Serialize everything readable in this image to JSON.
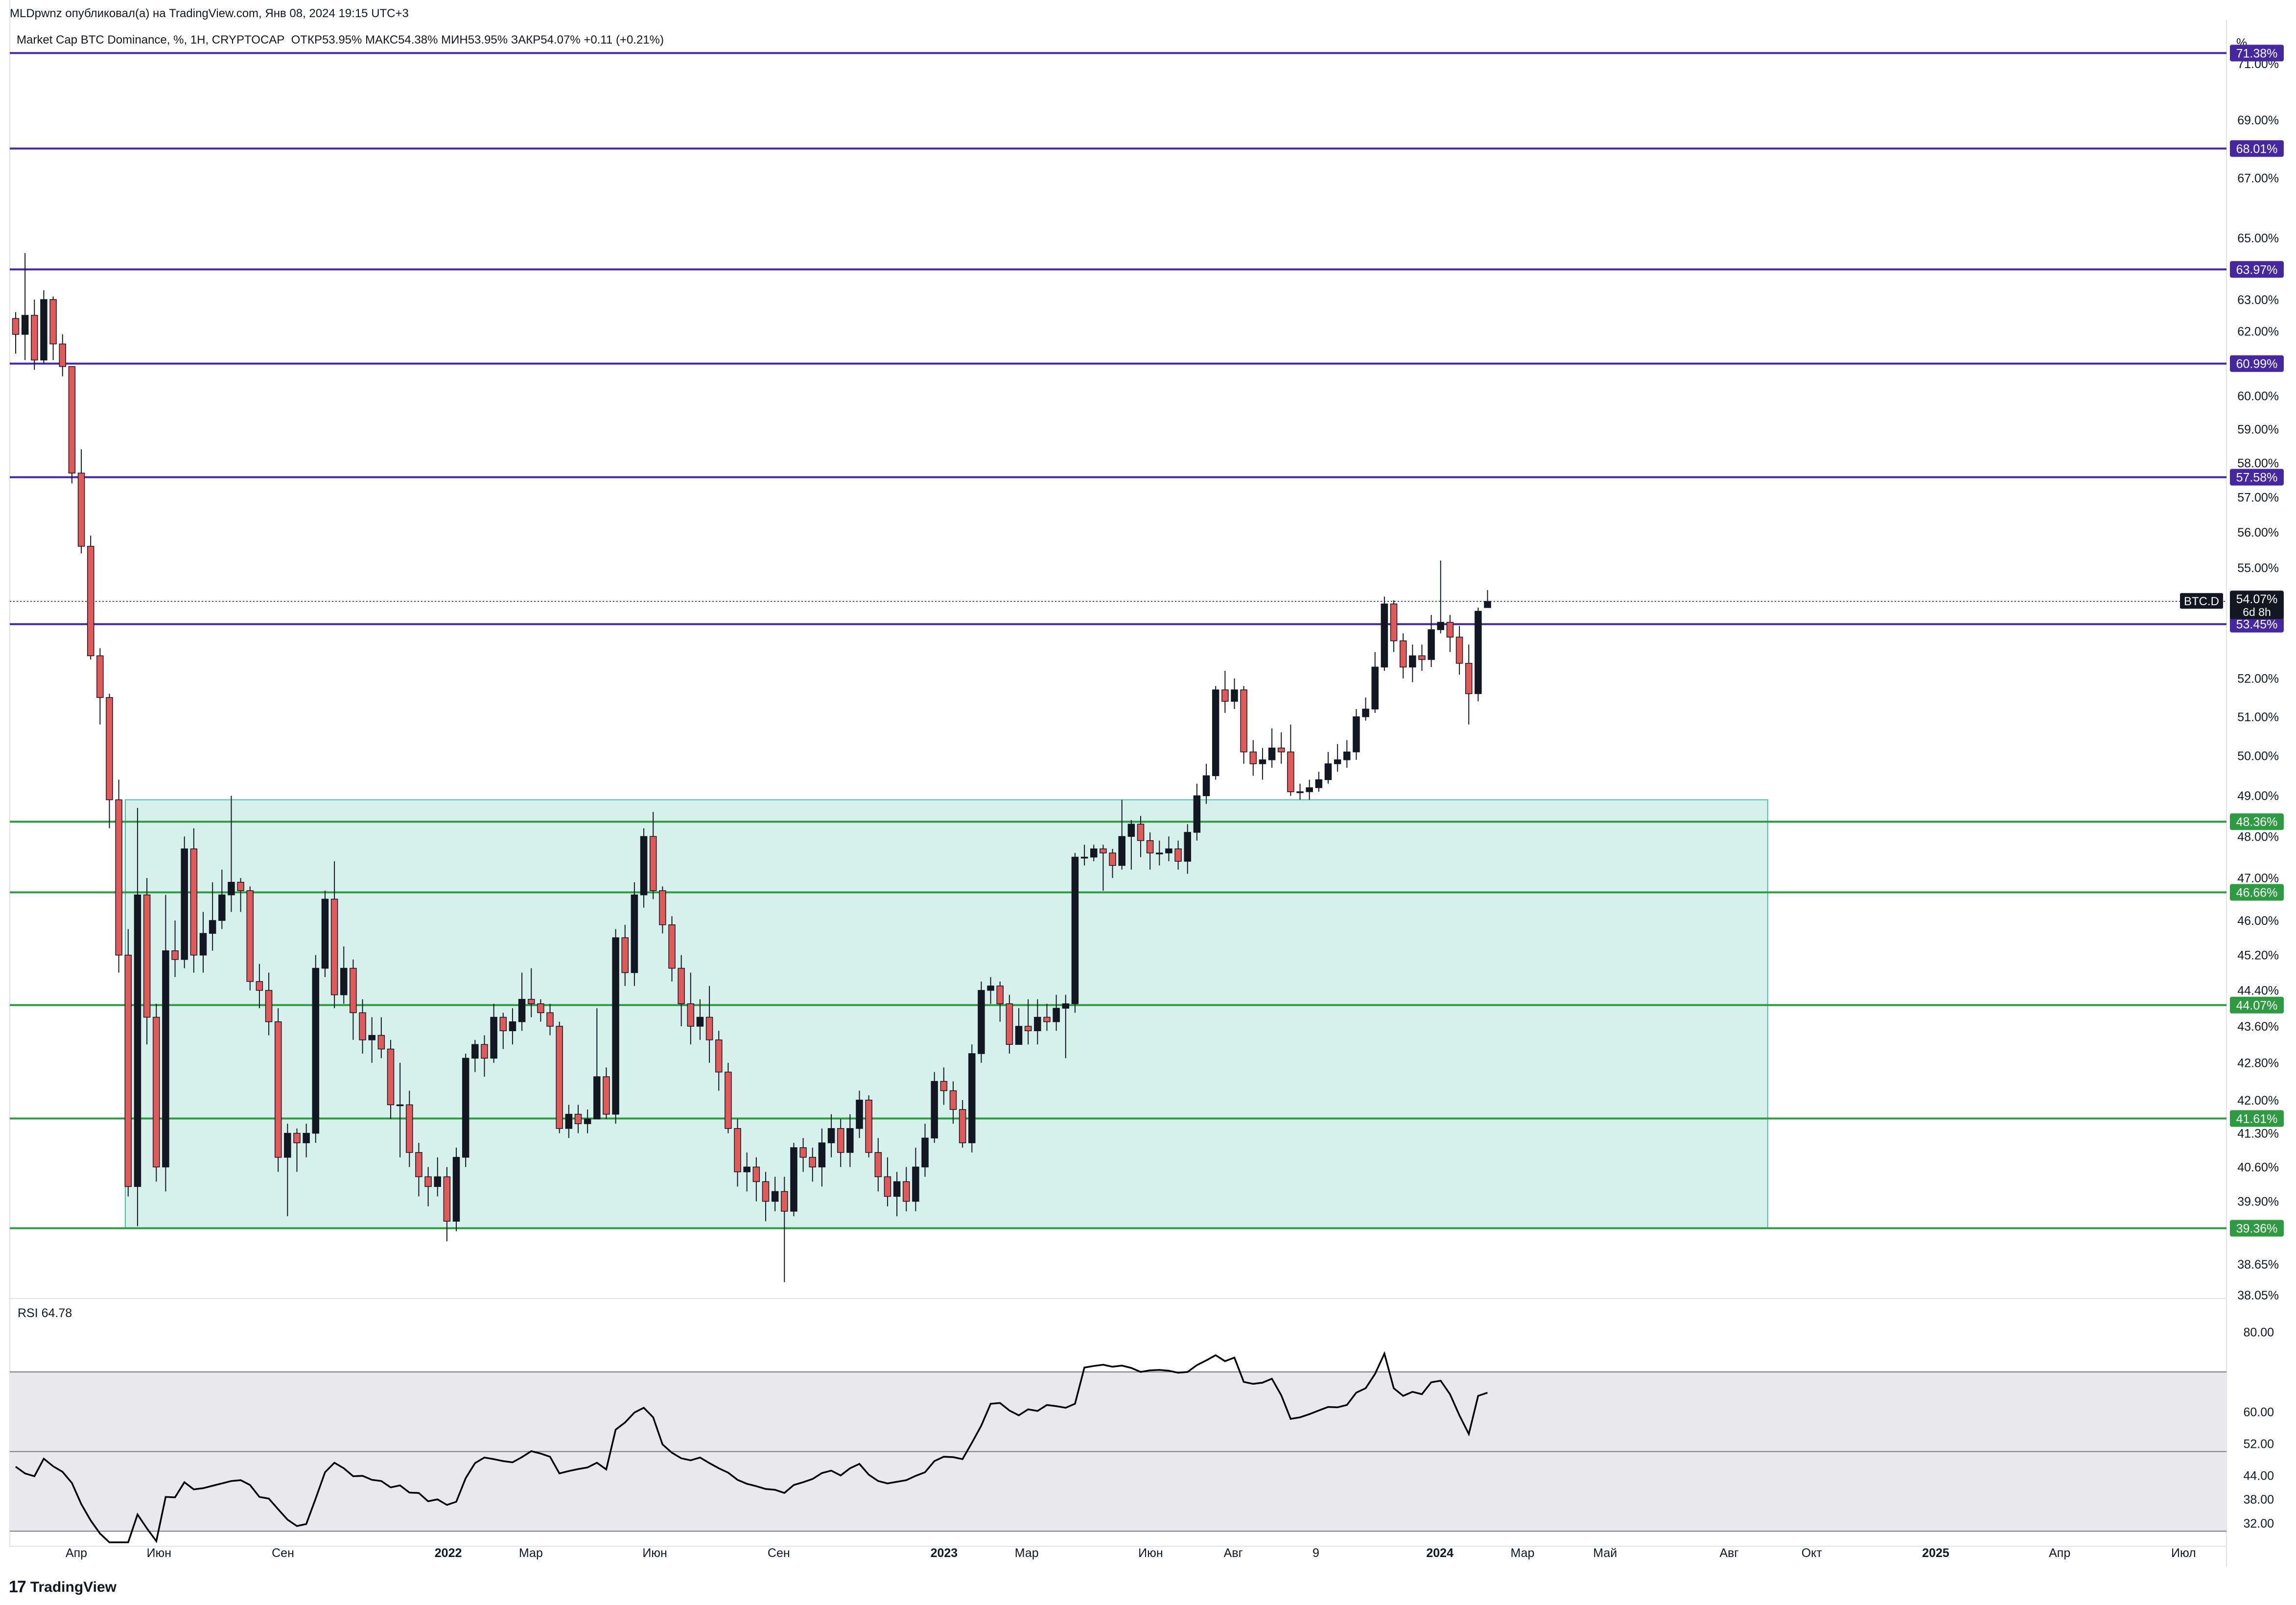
{
  "header": {
    "publisher": "MLDpwnz опубликовал(а) на TradingView.com, Янв 08, 2024 19:15 UTC+3",
    "instrument": "Market Cap BTC Dominance, %, 1H, CRYPTOCAP",
    "ohlc": "ОТКР53.95%  МАКС54.38%  МИН53.95%  ЗАКР54.07%  +0.11 (+0.21%)",
    "unit_label": "%"
  },
  "branding": {
    "logo": "TradingView",
    "logo_mark": "17"
  },
  "colors": {
    "up": "#131722",
    "down": "#e05a5a",
    "resistance": "#4527a0",
    "support": "#2e9a42",
    "range_fill": "#d6f1ec",
    "range_border": "#4bbfa6",
    "rsi_band": "#e9e9ec"
  },
  "chart_data": [
    {
      "type": "candlestick",
      "symbol": "BTC.D",
      "last_price": "54.07%",
      "countdown": "6d 8h",
      "y_scale": "log",
      "ylim": [
        38.05,
        72.6
      ],
      "y_ticks": [
        71.0,
        69.0,
        67.0,
        65.0,
        63.0,
        62.0,
        60.0,
        59.0,
        58.0,
        57.0,
        56.0,
        55.0,
        52.0,
        51.0,
        50.0,
        49.0,
        48.0,
        47.0,
        46.0,
        45.2,
        44.4,
        43.6,
        42.8,
        42.0,
        41.3,
        40.6,
        39.9,
        38.65,
        38.05
      ],
      "x_labels": [
        "Апр",
        "Июн",
        "Сен",
        "2022",
        "Мар",
        "Июн",
        "Сен",
        "2023",
        "Мар",
        "Июн",
        "Авг",
        "9",
        "2024",
        "Мар",
        "Май",
        "Авг",
        "Окт",
        "2025",
        "Апр",
        "Июл"
      ],
      "resistance_levels": [
        71.38,
        68.01,
        63.97,
        60.99,
        57.58,
        53.45
      ],
      "support_levels": [
        48.36,
        46.66,
        44.07,
        41.61,
        39.36
      ],
      "range_box": {
        "top": 48.9,
        "bottom": 39.36,
        "x_from": "2021-04-01",
        "x_to": "2024-10-01"
      },
      "candles": [
        [
          62.4,
          61.9,
          62.6,
          61.3
        ],
        [
          61.9,
          62.5,
          64.5,
          61.1
        ],
        [
          62.5,
          61.1,
          63.0,
          60.8
        ],
        [
          61.1,
          63.0,
          63.3,
          61.0
        ],
        [
          63.0,
          61.6,
          63.1,
          61.1
        ],
        [
          61.6,
          60.9,
          61.9,
          60.6
        ],
        [
          60.9,
          57.7,
          60.9,
          57.4
        ],
        [
          57.7,
          55.6,
          58.4,
          55.4
        ],
        [
          55.6,
          52.6,
          55.9,
          52.5
        ],
        [
          52.6,
          51.5,
          52.8,
          50.8
        ],
        [
          51.5,
          48.9,
          51.6,
          48.2
        ],
        [
          48.9,
          45.2,
          49.4,
          44.8
        ],
        [
          45.2,
          40.2,
          45.8,
          40.0
        ],
        [
          40.2,
          46.6,
          48.7,
          39.4
        ],
        [
          46.6,
          43.8,
          47.0,
          43.2
        ],
        [
          43.8,
          40.6,
          44.1,
          40.3
        ],
        [
          40.6,
          45.3,
          46.6,
          40.1
        ],
        [
          45.3,
          45.1,
          46.0,
          44.7
        ],
        [
          45.1,
          47.7,
          48.0,
          44.9
        ],
        [
          47.7,
          45.2,
          48.2,
          44.8
        ],
        [
          45.2,
          45.7,
          46.2,
          44.8
        ],
        [
          45.7,
          46.0,
          46.9,
          45.3
        ],
        [
          46.0,
          46.6,
          47.2,
          45.8
        ],
        [
          46.6,
          46.9,
          49.0,
          46.2
        ],
        [
          46.9,
          46.7,
          47.0,
          46.2
        ],
        [
          46.7,
          44.6,
          46.8,
          44.4
        ],
        [
          44.6,
          44.4,
          45.0,
          44.0
        ],
        [
          44.4,
          43.7,
          44.8,
          43.4
        ],
        [
          43.7,
          40.8,
          44.0,
          40.5
        ],
        [
          40.8,
          41.3,
          41.5,
          39.6
        ],
        [
          41.3,
          41.1,
          41.4,
          40.5
        ],
        [
          41.1,
          41.3,
          41.5,
          40.8
        ],
        [
          41.3,
          44.9,
          45.2,
          41.1
        ],
        [
          44.9,
          46.5,
          46.7,
          44.7
        ],
        [
          46.5,
          44.3,
          47.4,
          44.0
        ],
        [
          44.3,
          44.9,
          45.4,
          44.1
        ],
        [
          44.9,
          43.9,
          45.1,
          43.3
        ],
        [
          43.9,
          43.3,
          44.2,
          43.0
        ],
        [
          43.3,
          43.4,
          43.8,
          42.8
        ],
        [
          43.4,
          43.1,
          43.8,
          42.9
        ],
        [
          43.1,
          41.9,
          43.3,
          41.6
        ],
        [
          41.9,
          41.9,
          42.8,
          40.8
        ],
        [
          41.9,
          40.9,
          42.2,
          40.6
        ],
        [
          40.9,
          40.4,
          41.1,
          40.0
        ],
        [
          40.4,
          40.2,
          40.6,
          39.8
        ],
        [
          40.2,
          40.4,
          40.8,
          40.0
        ],
        [
          40.4,
          39.5,
          40.6,
          39.1
        ],
        [
          39.5,
          40.8,
          41.0,
          39.3
        ],
        [
          40.8,
          42.9,
          43.0,
          40.6
        ],
        [
          42.9,
          43.2,
          43.3,
          42.6
        ],
        [
          43.2,
          42.9,
          43.4,
          42.5
        ],
        [
          42.9,
          43.8,
          44.1,
          42.8
        ],
        [
          43.8,
          43.5,
          43.9,
          43.1
        ],
        [
          43.5,
          43.7,
          44.0,
          43.2
        ],
        [
          43.7,
          44.2,
          44.8,
          43.5
        ],
        [
          44.2,
          44.1,
          44.9,
          43.8
        ],
        [
          44.1,
          43.9,
          44.2,
          43.7
        ],
        [
          43.9,
          43.6,
          44.1,
          43.4
        ],
        [
          43.6,
          41.4,
          43.7,
          41.3
        ],
        [
          41.4,
          41.7,
          41.9,
          41.2
        ],
        [
          41.7,
          41.5,
          41.9,
          41.3
        ],
        [
          41.5,
          41.6,
          41.8,
          41.3
        ],
        [
          41.6,
          42.5,
          44.0,
          41.6
        ],
        [
          42.5,
          41.7,
          42.7,
          41.6
        ],
        [
          41.7,
          45.6,
          45.8,
          41.5
        ],
        [
          45.6,
          44.8,
          45.9,
          44.5
        ],
        [
          44.8,
          46.6,
          46.9,
          44.5
        ],
        [
          46.6,
          48.0,
          48.2,
          46.3
        ],
        [
          48.0,
          46.7,
          48.6,
          46.5
        ],
        [
          46.7,
          45.9,
          46.8,
          45.7
        ],
        [
          45.9,
          44.9,
          46.1,
          44.6
        ],
        [
          44.9,
          44.1,
          45.2,
          43.6
        ],
        [
          44.1,
          43.6,
          44.8,
          43.2
        ],
        [
          43.6,
          43.8,
          44.2,
          43.3
        ],
        [
          43.8,
          43.3,
          44.5,
          42.8
        ],
        [
          43.3,
          42.6,
          43.5,
          42.2
        ],
        [
          42.6,
          41.4,
          42.8,
          41.3
        ],
        [
          41.4,
          40.5,
          41.6,
          40.2
        ],
        [
          40.5,
          40.6,
          40.9,
          40.1
        ],
        [
          40.6,
          40.3,
          40.8,
          39.9
        ],
        [
          40.3,
          39.9,
          40.5,
          39.5
        ],
        [
          39.9,
          40.1,
          40.4,
          39.7
        ],
        [
          40.1,
          39.7,
          40.4,
          38.3
        ],
        [
          39.7,
          41.0,
          41.1,
          39.6
        ],
        [
          41.0,
          40.8,
          41.2,
          40.5
        ],
        [
          40.8,
          40.6,
          41.0,
          40.3
        ],
        [
          40.6,
          41.1,
          41.4,
          40.2
        ],
        [
          41.1,
          41.4,
          41.7,
          40.8
        ],
        [
          41.4,
          40.9,
          41.6,
          40.6
        ],
        [
          40.9,
          41.4,
          41.7,
          40.6
        ],
        [
          41.4,
          42.0,
          42.2,
          41.2
        ],
        [
          42.0,
          40.9,
          42.1,
          40.8
        ],
        [
          40.9,
          40.4,
          41.2,
          40.1
        ],
        [
          40.4,
          40.0,
          40.8,
          39.8
        ],
        [
          40.0,
          40.3,
          40.5,
          39.6
        ],
        [
          40.3,
          39.9,
          40.6,
          39.7
        ],
        [
          39.9,
          40.6,
          41.0,
          39.7
        ],
        [
          40.6,
          41.2,
          41.5,
          40.4
        ],
        [
          41.2,
          42.4,
          42.6,
          41.1
        ],
        [
          42.4,
          42.2,
          42.7,
          41.9
        ],
        [
          42.2,
          41.8,
          42.4,
          41.5
        ],
        [
          41.8,
          41.1,
          42.0,
          41.0
        ],
        [
          41.1,
          43.0,
          43.2,
          40.9
        ],
        [
          43.0,
          44.4,
          44.6,
          42.8
        ],
        [
          44.4,
          44.5,
          44.7,
          44.1
        ],
        [
          44.5,
          44.1,
          44.6,
          43.7
        ],
        [
          44.1,
          43.2,
          44.3,
          43.0
        ],
        [
          43.2,
          43.6,
          44.0,
          43.3
        ],
        [
          43.6,
          43.5,
          44.2,
          43.2
        ],
        [
          43.5,
          43.8,
          44.2,
          43.2
        ],
        [
          43.8,
          43.7,
          44.1,
          43.5
        ],
        [
          43.7,
          44.0,
          44.3,
          43.5
        ],
        [
          44.0,
          44.1,
          44.3,
          42.9
        ],
        [
          44.1,
          47.5,
          47.6,
          43.9
        ],
        [
          47.5,
          47.5,
          47.8,
          47.3
        ],
        [
          47.5,
          47.7,
          47.8,
          47.4
        ],
        [
          47.7,
          47.6,
          47.8,
          46.7
        ],
        [
          47.6,
          47.3,
          47.7,
          47.0
        ],
        [
          47.3,
          48.0,
          48.9,
          47.2
        ],
        [
          48.0,
          48.3,
          48.4,
          47.2
        ],
        [
          48.3,
          47.9,
          48.5,
          47.5
        ],
        [
          47.9,
          47.6,
          48.1,
          47.2
        ],
        [
          47.6,
          47.6,
          47.9,
          47.3
        ],
        [
          47.6,
          47.7,
          48.0,
          47.4
        ],
        [
          47.7,
          47.4,
          47.9,
          47.2
        ],
        [
          47.4,
          48.1,
          48.3,
          47.1
        ],
        [
          48.1,
          49.0,
          49.3,
          47.9
        ],
        [
          49.0,
          49.5,
          49.8,
          48.8
        ],
        [
          49.5,
          51.7,
          51.8,
          49.4
        ],
        [
          51.7,
          51.4,
          52.2,
          51.1
        ],
        [
          51.4,
          51.7,
          52.0,
          51.2
        ],
        [
          51.7,
          50.1,
          51.8,
          49.8
        ],
        [
          50.1,
          49.8,
          50.4,
          49.5
        ],
        [
          49.8,
          49.9,
          50.2,
          49.4
        ],
        [
          49.9,
          50.2,
          50.7,
          49.7
        ],
        [
          50.2,
          50.1,
          50.6,
          49.8
        ],
        [
          50.1,
          49.1,
          50.8,
          49.0
        ],
        [
          49.1,
          49.1,
          49.3,
          48.9
        ],
        [
          49.1,
          49.2,
          49.4,
          48.9
        ],
        [
          49.2,
          49.4,
          49.6,
          49.1
        ],
        [
          49.4,
          49.8,
          50.1,
          49.3
        ],
        [
          49.8,
          49.9,
          50.3,
          49.6
        ],
        [
          49.9,
          50.1,
          50.4,
          49.7
        ],
        [
          50.1,
          51.0,
          51.2,
          49.9
        ],
        [
          51.0,
          51.2,
          51.5,
          50.9
        ],
        [
          51.2,
          52.3,
          52.7,
          51.1
        ],
        [
          52.3,
          54.0,
          54.2,
          52.2
        ],
        [
          54.0,
          53.0,
          54.1,
          52.7
        ],
        [
          53.0,
          52.3,
          53.2,
          52.0
        ],
        [
          52.3,
          52.6,
          52.9,
          51.9
        ],
        [
          52.6,
          52.5,
          52.9,
          52.2
        ],
        [
          52.5,
          53.3,
          53.7,
          52.3
        ],
        [
          53.3,
          53.5,
          55.2,
          53.2
        ],
        [
          53.5,
          53.1,
          53.7,
          52.7
        ],
        [
          53.1,
          52.4,
          53.4,
          52.1
        ],
        [
          52.4,
          51.6,
          52.9,
          50.8
        ],
        [
          51.6,
          53.8,
          53.9,
          51.4
        ],
        [
          53.9,
          54.07,
          54.38,
          53.95
        ]
      ]
    },
    {
      "type": "line",
      "title": "RSI",
      "last_value": "64.78",
      "ylim": [
        27.2,
        85.0
      ],
      "bands": [
        70,
        30
      ],
      "midline": 50,
      "y_ticks": [
        80.0,
        60.0,
        52.0,
        44.0,
        38.0,
        32.0
      ],
      "values": [
        46.2,
        44.5,
        43.8,
        48.2,
        46.3,
        44.9,
        42.1,
        36.8,
        32.7,
        29.4,
        26.4,
        24.1,
        22.9,
        34.2,
        30.7,
        27.5,
        38.6,
        38.5,
        42.3,
        40.5,
        40.8,
        41.4,
        42.0,
        42.6,
        42.8,
        41.6,
        38.6,
        38.2,
        35.5,
        32.9,
        31.3,
        31.8,
        38.2,
        44.8,
        47.2,
        45.8,
        43.8,
        43.9,
        42.9,
        42.6,
        41.0,
        41.5,
        39.7,
        39.6,
        37.5,
        38.0,
        36.6,
        37.4,
        43.3,
        47.1,
        48.5,
        48.1,
        47.6,
        47.3,
        48.6,
        50.1,
        49.5,
        48.7,
        44.5,
        45.1,
        45.6,
        46.0,
        47.2,
        45.5,
        55.5,
        57.3,
        59.8,
        61.0,
        58.6,
        51.8,
        49.7,
        48.3,
        47.8,
        48.5,
        47.1,
        45.8,
        44.7,
        42.9,
        41.9,
        41.3,
        40.6,
        40.4,
        39.6,
        41.6,
        42.3,
        43.1,
        44.6,
        45.2,
        44.0,
        45.8,
        46.9,
        44.2,
        42.6,
        42.0,
        42.4,
        42.8,
        43.9,
        44.8,
        47.6,
        48.7,
        48.6,
        48.1,
        52.2,
        56.5,
        62.0,
        62.2,
        60.3,
        59.1,
        60.6,
        60.2,
        61.7,
        61.4,
        61.0,
        62.0,
        71.1,
        71.5,
        71.8,
        71.3,
        71.6,
        71.0,
        70.0,
        70.4,
        70.5,
        70.3,
        69.8,
        70.0,
        71.7,
        72.9,
        74.2,
        72.7,
        73.6,
        67.5,
        67.0,
        67.3,
        68.3,
        64.1,
        58.2,
        58.6,
        59.4,
        60.3,
        61.2,
        61.1,
        61.7,
        64.8,
        65.9,
        69.5,
        74.6,
        65.9,
        64.0,
        65.0,
        64.4,
        67.4,
        67.8,
        64.4,
        59.1,
        54.4,
        64.0,
        64.78
      ]
    }
  ]
}
